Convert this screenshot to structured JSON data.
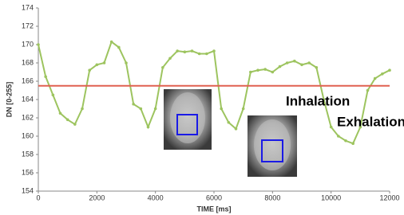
{
  "chart_data": {
    "type": "line",
    "x": [
      0,
      250,
      500,
      750,
      1000,
      1250,
      1500,
      1750,
      2000,
      2250,
      2500,
      2750,
      3000,
      3250,
      3500,
      3750,
      4000,
      4250,
      4500,
      4750,
      5000,
      5250,
      5500,
      5750,
      6000,
      6250,
      6500,
      6750,
      7000,
      7250,
      7500,
      7750,
      8000,
      8250,
      8500,
      8750,
      9000,
      9250,
      9500,
      9750,
      10000,
      10250,
      10500,
      10750,
      11000,
      11250,
      11500,
      11750,
      12000
    ],
    "series": [
      {
        "color": "#9dc45f",
        "values": [
          170.0,
          166.5,
          164.5,
          162.5,
          161.8,
          161.3,
          163.0,
          167.2,
          167.8,
          168.0,
          170.3,
          169.7,
          168.0,
          163.5,
          163.0,
          161.0,
          163.0,
          167.5,
          168.5,
          169.3,
          169.2,
          169.3,
          169.0,
          169.0,
          169.3,
          163.0,
          161.5,
          160.8,
          163.0,
          167.0,
          167.2,
          167.3,
          167.0,
          167.6,
          168.0,
          168.2,
          167.8,
          168.0,
          167.5,
          164.0,
          161.0,
          160.0,
          159.5,
          159.2,
          161.0,
          165.0,
          166.3,
          166.8,
          167.2
        ]
      }
    ],
    "threshold": {
      "value": 165.5,
      "color": "#e06050"
    },
    "xlabel": "TIME [ms]",
    "ylabel": "DN [0-255]",
    "xlim": [
      0,
      12000
    ],
    "xticks": [
      0,
      2000,
      4000,
      6000,
      8000,
      10000,
      12000
    ],
    "ylim": [
      154,
      174
    ],
    "yticks": [
      154,
      156,
      158,
      160,
      162,
      164,
      166,
      168,
      170,
      172,
      174
    ],
    "annotations": [
      "Inhalation",
      "Exhalation"
    ]
  }
}
